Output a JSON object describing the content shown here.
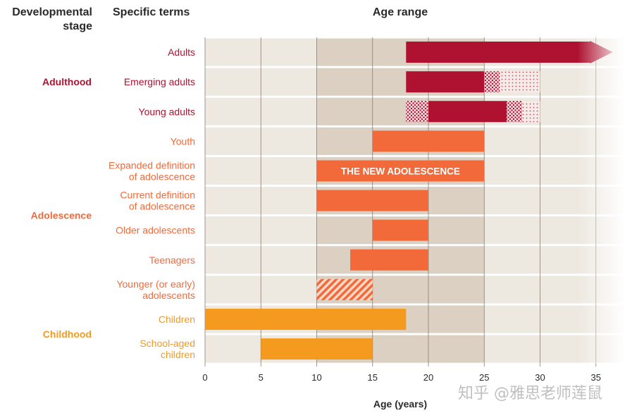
{
  "headers": {
    "stage": "Developmental stage",
    "terms": "Specific terms",
    "age_range": "Age range"
  },
  "watermark": "知乎 @雅思老师莲鼠",
  "colors": {
    "adulthood": "#ae1230",
    "adolescence": "#f26a3a",
    "childhood": "#f39a1f",
    "band_light": "#ede8e0",
    "band_dark": "#dbd0c2"
  },
  "chart_data": {
    "type": "bar",
    "orientation": "horizontal",
    "title": "Age range",
    "xlabel": "Age (years)",
    "xlim": [
      0,
      37
    ],
    "xticks": [
      0,
      5,
      10,
      15,
      20,
      25,
      30,
      35
    ],
    "grid": true,
    "stages": [
      {
        "label": "Adulthood",
        "color": "#ae1230",
        "rows": [
          0,
          2
        ]
      },
      {
        "label": "Adolescence",
        "color": "#f26a3a",
        "rows": [
          3,
          8
        ]
      },
      {
        "label": "Childhood",
        "color": "#f39a1f",
        "rows": [
          9,
          10
        ]
      }
    ],
    "rows": [
      {
        "term": "Adults",
        "stage": "Adulthood",
        "start": 18,
        "end": 36,
        "style": "arrow"
      },
      {
        "term": "Emerging adults",
        "stage": "Adulthood",
        "start": 18,
        "end": 25,
        "style": "solid",
        "fade_end": 30
      },
      {
        "term": "Young adults",
        "stage": "Adulthood",
        "start": 18,
        "end": 27,
        "style": "solid",
        "fade_start": 18,
        "solid_start": 20,
        "fade_end": 30
      },
      {
        "term": "Youth",
        "stage": "Adolescence",
        "start": 15,
        "end": 25,
        "style": "solid"
      },
      {
        "term": "Expanded definition\nof adolescence",
        "stage": "Adolescence",
        "start": 10,
        "end": 25,
        "style": "solid",
        "bar_label": "THE NEW ADOLESCENCE"
      },
      {
        "term": "Current definition\nof adolescence",
        "stage": "Adolescence",
        "start": 10,
        "end": 20,
        "style": "solid"
      },
      {
        "term": "Older adolescents",
        "stage": "Adolescence",
        "start": 15,
        "end": 20,
        "style": "solid"
      },
      {
        "term": "Teenagers",
        "stage": "Adolescence",
        "start": 13,
        "end": 20,
        "style": "solid"
      },
      {
        "term": "Younger (or early)\nadolescents",
        "stage": "Adolescence",
        "start": 10,
        "end": 15,
        "style": "hatched"
      },
      {
        "term": "Children",
        "stage": "Childhood",
        "start": 0,
        "end": 18,
        "style": "solid"
      },
      {
        "term": "School-aged\nchildren",
        "stage": "Childhood",
        "start": 5,
        "end": 15,
        "style": "solid"
      }
    ]
  }
}
